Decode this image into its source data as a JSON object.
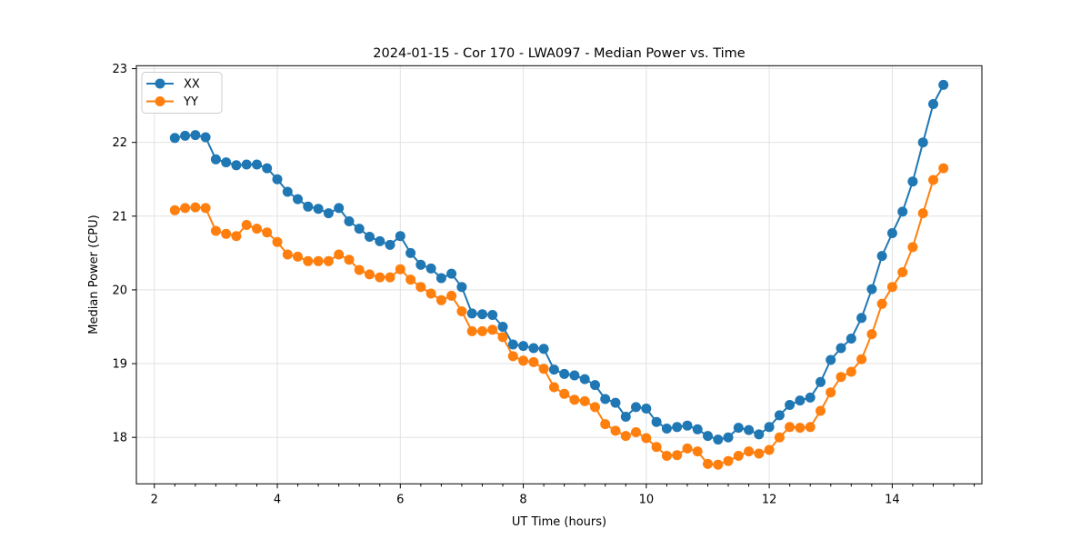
{
  "chart_data": {
    "type": "line",
    "title": "2024-01-15 - Cor 170 - LWA097 - Median Power vs. Time",
    "xlabel": "UT Time (hours)",
    "ylabel": "Median Power (CPU)",
    "xlim": [
      1.708,
      15.458
    ],
    "ylim": [
      17.37,
      23.04
    ],
    "xticks": [
      2,
      4,
      6,
      8,
      10,
      12,
      14
    ],
    "yticks": [
      18,
      19,
      20,
      21,
      22,
      23
    ],
    "minor_xtick_step": 0.3333,
    "grid": true,
    "legend_position": "upper left",
    "marker": "circle",
    "x": [
      2.333,
      2.5,
      2.667,
      2.833,
      3.0,
      3.167,
      3.333,
      3.5,
      3.667,
      3.833,
      4.0,
      4.167,
      4.333,
      4.5,
      4.667,
      4.833,
      5.0,
      5.167,
      5.333,
      5.5,
      5.667,
      5.833,
      6.0,
      6.167,
      6.333,
      6.5,
      6.667,
      6.833,
      7.0,
      7.167,
      7.333,
      7.5,
      7.667,
      7.833,
      8.0,
      8.167,
      8.333,
      8.5,
      8.667,
      8.833,
      9.0,
      9.167,
      9.333,
      9.5,
      9.667,
      9.833,
      10.0,
      10.167,
      10.333,
      10.5,
      10.667,
      10.833,
      11.0,
      11.167,
      11.333,
      11.5,
      11.667,
      11.833,
      12.0,
      12.167,
      12.333,
      12.5,
      12.667,
      12.833,
      13.0,
      13.167,
      13.333,
      13.5,
      13.667,
      13.833,
      14.0,
      14.167,
      14.333,
      14.5,
      14.667,
      14.833
    ],
    "series": [
      {
        "name": "XX",
        "color": "#1f77b4",
        "values": [
          22.06,
          22.09,
          22.1,
          22.07,
          21.77,
          21.73,
          21.69,
          21.7,
          21.7,
          21.65,
          21.5,
          21.33,
          21.23,
          21.13,
          21.1,
          21.04,
          21.11,
          20.93,
          20.83,
          20.72,
          20.66,
          20.61,
          20.73,
          20.5,
          20.34,
          20.29,
          20.16,
          20.22,
          20.04,
          19.68,
          19.67,
          19.66,
          19.5,
          19.26,
          19.24,
          19.21,
          19.2,
          18.92,
          18.86,
          18.84,
          18.79,
          18.71,
          18.52,
          18.47,
          18.28,
          18.41,
          18.39,
          18.21,
          18.12,
          18.14,
          18.16,
          18.11,
          18.02,
          17.97,
          18.0,
          18.13,
          18.1,
          18.04,
          18.14,
          18.3,
          18.44,
          18.5,
          18.54,
          18.75,
          19.05,
          19.21,
          19.34,
          19.62,
          20.01,
          20.46,
          20.77,
          21.06,
          21.47,
          22.0,
          22.52,
          22.78
        ]
      },
      {
        "name": "YY",
        "color": "#ff7f0e",
        "values": [
          21.08,
          21.11,
          21.12,
          21.11,
          20.8,
          20.76,
          20.73,
          20.88,
          20.83,
          20.78,
          20.65,
          20.48,
          20.45,
          20.39,
          20.39,
          20.39,
          20.48,
          20.41,
          20.27,
          20.21,
          20.17,
          20.17,
          20.28,
          20.14,
          20.04,
          19.95,
          19.86,
          19.92,
          19.71,
          19.44,
          19.44,
          19.46,
          19.36,
          19.1,
          19.04,
          19.02,
          18.93,
          18.68,
          18.59,
          18.51,
          18.49,
          18.41,
          18.18,
          18.09,
          18.02,
          18.07,
          17.99,
          17.87,
          17.75,
          17.76,
          17.85,
          17.81,
          17.64,
          17.63,
          17.68,
          17.75,
          17.81,
          17.78,
          17.83,
          18.0,
          18.14,
          18.13,
          18.14,
          18.36,
          18.61,
          18.82,
          18.89,
          19.06,
          19.4,
          19.81,
          20.04,
          20.24,
          20.58,
          21.04,
          21.49,
          21.65
        ]
      }
    ]
  }
}
